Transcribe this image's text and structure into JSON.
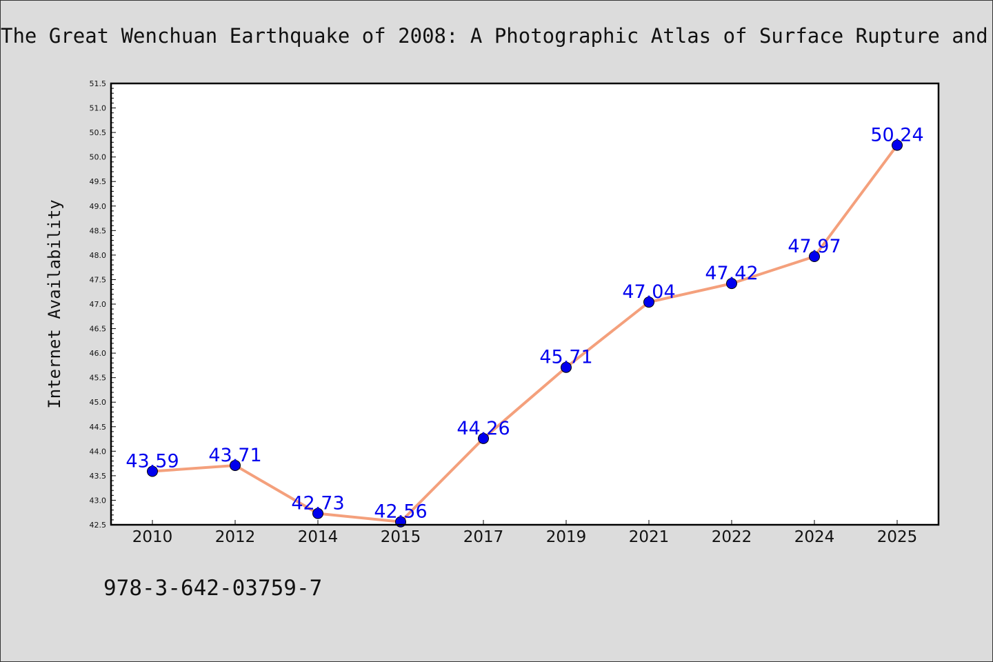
{
  "title": "The Great Wenchuan Earthquake of 2008: A Photographic Atlas of Surface Rupture and Related Disaster",
  "footer_isbn": "978-3-642-03759-7",
  "chart_data": {
    "type": "line",
    "title": "The Great Wenchuan Earthquake of 2008: A Photographic Atlas of Surface Rupture and Related Disaster",
    "xlabel": "",
    "ylabel": "Internet Availability",
    "categories": [
      "2010",
      "2012",
      "2014",
      "2015",
      "2017",
      "2019",
      "2021",
      "2022",
      "2024",
      "2025"
    ],
    "series": [
      {
        "values": [
          43.59,
          43.71,
          42.73,
          42.56,
          44.26,
          45.71,
          47.04,
          47.42,
          47.97,
          50.24
        ]
      }
    ],
    "data_labels": [
      "43.59",
      "43.71",
      "42.73",
      "42.56",
      "44.26",
      "45.71",
      "47.04",
      "47.42",
      "47.97",
      "50.24"
    ],
    "ylim": [
      42.5,
      51.5
    ],
    "yticks": [
      "42.5",
      "43.0",
      "43.5",
      "44.0",
      "44.5",
      "45.0",
      "45.5",
      "46.0",
      "46.5",
      "47.0",
      "47.5",
      "48.0",
      "48.5",
      "49.0",
      "49.5",
      "50.0",
      "50.5",
      "51.0",
      "51.5"
    ],
    "grid": false,
    "legend": "none",
    "colors": {
      "line": "#f4a07c",
      "marker": "#0000ee",
      "label": "#0000ee"
    }
  }
}
